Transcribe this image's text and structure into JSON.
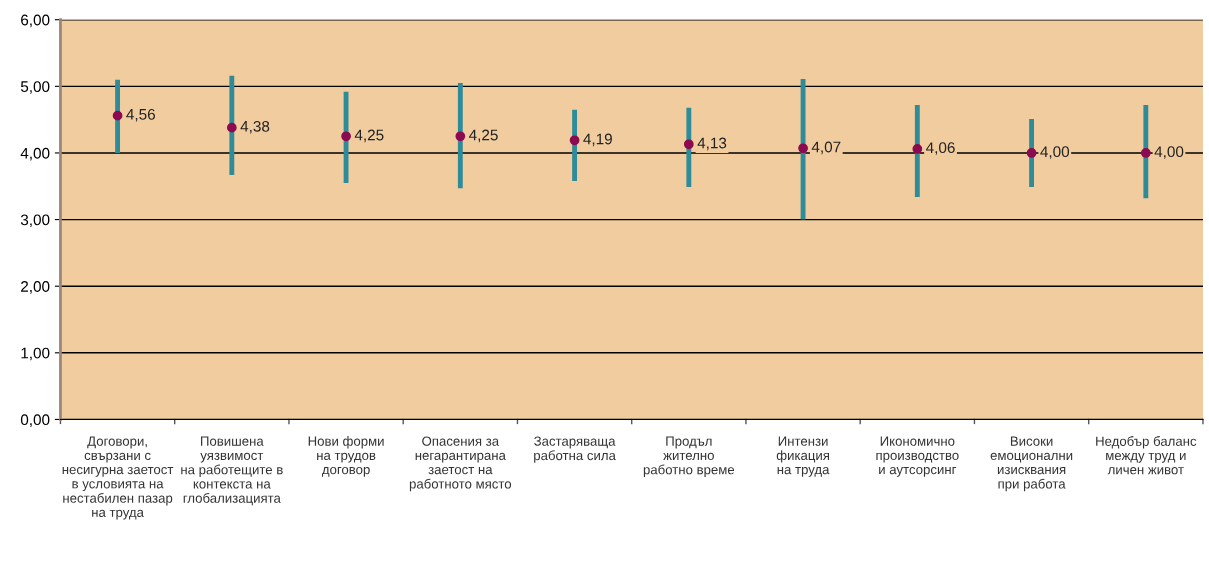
{
  "chart_data": {
    "type": "scatter",
    "categories": [
      "Договори,\nсвързани с\nнесигурна заетост\nв условията на\nнестабилен пазар\nна труда",
      "Повишена\nуязвимост\nна работещите в\nконтекста на\nглобализацията",
      "Нови форми\nна трудов\nдоговор",
      "Опасения за\nнегарантирана\nзаетост на\nработното място",
      "Застаряваща\nработна сила",
      "Продъл\nжително\nработно време",
      "Интензи\nфикация\nна труда",
      "Икономично\nпроизводство\nи аутсорсинг",
      "Високи\nемоционални\nизисквания\nпри работа",
      "Недобър баланс\nмежду труд и\nличен живот"
    ],
    "values": [
      4.56,
      4.38,
      4.25,
      4.25,
      4.19,
      4.13,
      4.07,
      4.06,
      4.0,
      4.0
    ],
    "value_labels": [
      "4,56",
      "4,38",
      "4,25",
      "4,25",
      "4,19",
      "4,13",
      "4,07",
      "4,06",
      "4,00",
      "4,00"
    ],
    "errors": [
      [
        4.0,
        5.1
      ],
      [
        3.67,
        5.16
      ],
      [
        3.55,
        4.92
      ],
      [
        3.47,
        5.05
      ],
      [
        3.58,
        4.65
      ],
      [
        3.49,
        4.68
      ],
      [
        3.0,
        5.11
      ],
      [
        3.34,
        4.72
      ],
      [
        3.49,
        4.51
      ],
      [
        3.32,
        4.72
      ]
    ],
    "color": "#8b0a50",
    "marker": "circle",
    "ylim": [
      0,
      6
    ],
    "yticks": [
      {
        "value": 0,
        "label": "0,00"
      },
      {
        "value": 1,
        "label": "1,00"
      },
      {
        "value": 2,
        "label": "2,00"
      },
      {
        "value": 3,
        "label": "3,00"
      },
      {
        "value": 4,
        "label": "4,00"
      },
      {
        "value": 5,
        "label": "5,00"
      },
      {
        "value": 6,
        "label": "6,00"
      }
    ],
    "grid": "y",
    "legend": false
  }
}
